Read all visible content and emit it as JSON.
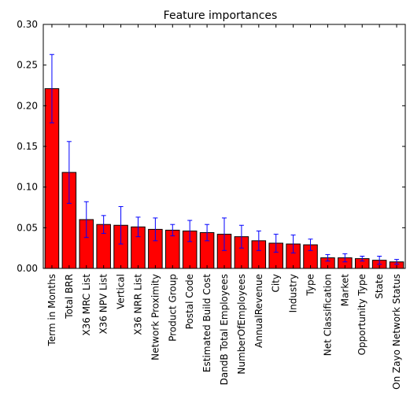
{
  "chart_data": {
    "type": "bar",
    "title": "Feature importances",
    "xlabel": "",
    "ylabel": "",
    "ylim": [
      0,
      0.3
    ],
    "yticks": [
      0.0,
      0.05,
      0.1,
      0.15,
      0.2,
      0.25,
      0.3
    ],
    "ytick_labels": [
      "0.00",
      "0.05",
      "0.10",
      "0.15",
      "0.20",
      "0.25",
      "0.30"
    ],
    "grid": false,
    "bar_color": "#ff0000",
    "error_bar_color": "#0000ff",
    "categories": [
      "Term in Months",
      "Total BRR",
      "X36 MRC List",
      "X36 NPV List",
      "Vertical",
      "X36 NRR List",
      "Network Proximity",
      "Product Group",
      "Postal Code",
      "Estimated Build Cost",
      "DandB Total Employees",
      "NumberOfEmployees",
      "AnnualRevenue",
      "City",
      "Industry",
      "Type",
      "Net Classification",
      "Market",
      "Opportunity Type",
      "State",
      "On Zayo Network Status"
    ],
    "values": [
      0.221,
      0.118,
      0.06,
      0.054,
      0.053,
      0.051,
      0.048,
      0.047,
      0.046,
      0.044,
      0.042,
      0.039,
      0.034,
      0.031,
      0.03,
      0.029,
      0.013,
      0.013,
      0.012,
      0.01,
      0.008
    ],
    "errors": [
      0.042,
      0.038,
      0.022,
      0.011,
      0.023,
      0.012,
      0.014,
      0.007,
      0.013,
      0.01,
      0.02,
      0.014,
      0.012,
      0.011,
      0.011,
      0.007,
      0.004,
      0.005,
      0.003,
      0.005,
      0.003
    ]
  }
}
